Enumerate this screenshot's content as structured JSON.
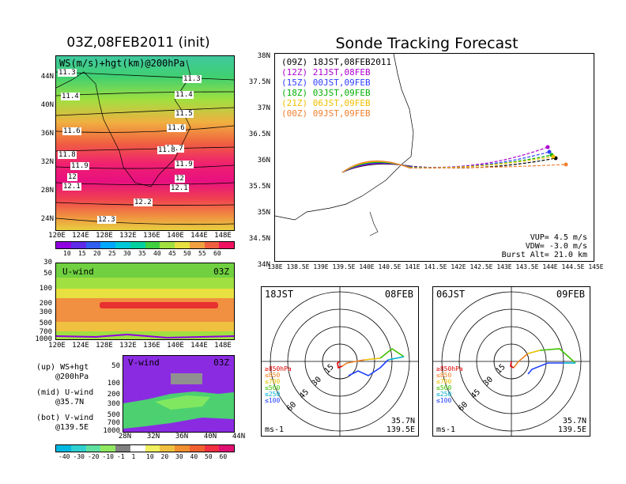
{
  "left_panel": {
    "title": "03Z,08FEB2011 (init)",
    "map_label": "WS(m/s)+hgt(km)@200hPa",
    "lat_ticks": [
      "44N",
      "40N",
      "36N",
      "32N",
      "28N",
      "24N"
    ],
    "lon_ticks": [
      "120E",
      "124E",
      "128E",
      "132E",
      "136E",
      "140E",
      "144E",
      "148E"
    ],
    "contour_labels": [
      "11.3",
      "11.3",
      "11.4",
      "11.4",
      "11.5",
      "11.6",
      "11.6",
      "11.7",
      "11.8",
      "11.8",
      "11.9",
      "11.9",
      "12",
      "12",
      "12.1",
      "12.1",
      "12.2",
      "12.3"
    ],
    "colorbar_ticks": [
      "10",
      "15",
      "20",
      "25",
      "30",
      "35",
      "40",
      "45",
      "50",
      "55",
      "60"
    ],
    "colorbar_colors": [
      "#9000e0",
      "#5e2be8",
      "#3060f0",
      "#00a8ff",
      "#00c8d8",
      "#00d0a0",
      "#40d040",
      "#a0e040",
      "#e8e040",
      "#f0a040",
      "#f06040",
      "#f01060"
    ]
  },
  "uwind": {
    "label": "U-wind",
    "time": "03Z",
    "y_ticks": [
      "30",
      "50",
      "100",
      "200",
      "300",
      "500",
      "700",
      "1000"
    ],
    "x_ticks": [
      "120E",
      "124E",
      "128E",
      "132E",
      "136E",
      "140E",
      "144E",
      "148E"
    ]
  },
  "vwind": {
    "label": "V-wind",
    "time": "03Z",
    "y_ticks": [
      "50",
      "100",
      "200",
      "300",
      "500",
      "700",
      "1000"
    ],
    "x_ticks": [
      "28N",
      "32N",
      "36N",
      "40N",
      "44N"
    ]
  },
  "legend_notes": {
    "up_1": "(up) WS+hgt",
    "up_2": "@200hPa",
    "mid_1": "(mid) U-wind",
    "mid_2": "@35.7N",
    "bot_1": "(bot) V-wind",
    "bot_2": "@139.5E"
  },
  "bottom_colorbar": {
    "ticks": [
      "-40",
      "-30",
      "-20",
      "-10",
      "-1",
      "1",
      "10",
      "20",
      "30",
      "40",
      "50",
      "60"
    ],
    "colors": [
      "#00b8e0",
      "#30d0d0",
      "#60e0a0",
      "#90e860",
      "#808080",
      "#ffffff",
      "#f0f060",
      "#f0c040",
      "#f09030",
      "#f06030",
      "#f03040",
      "#e01070"
    ]
  },
  "tracking": {
    "title": "Sonde Tracking Forecast",
    "legend": [
      {
        "launch": "(09Z)",
        "time": "18JST,08FEB2011",
        "color": "#000000"
      },
      {
        "launch": "(12Z)",
        "time": "21JST,08FEB",
        "color": "#b000d0"
      },
      {
        "launch": "(15Z)",
        "time": "00JST,09FEB",
        "color": "#3040ff"
      },
      {
        "launch": "(18Z)",
        "time": "03JST,09FEB",
        "color": "#00b000"
      },
      {
        "launch": "(21Z)",
        "time": "06JST,09FEB",
        "color": "#f0c000"
      },
      {
        "launch": "(00Z)",
        "time": "09JST,09FEB",
        "color": "#f08030"
      }
    ],
    "lat_ticks": [
      "38N",
      "37.5N",
      "37N",
      "36.5N",
      "36N",
      "35.5N",
      "35N",
      "34.5N",
      "34N"
    ],
    "lon_ticks": [
      "138E",
      "138.5E",
      "139E",
      "139.5E",
      "140E",
      "140.5E",
      "141E",
      "141.5E",
      "142E",
      "142.5E",
      "143E",
      "143.5E",
      "144E",
      "144.5E",
      "145E"
    ],
    "vup": "VUP= 4.5 m/s",
    "vdw": "VDW= -3.0 m/s",
    "burst": "Burst Alt= 21.0 km"
  },
  "hodo_left": {
    "time": "18JST",
    "date": "08FEB",
    "lat": "35.7N",
    "lon": "139.5E",
    "unit": "ms-1"
  },
  "hodo_right": {
    "time": "06JST",
    "date": "09FEB",
    "lat": "35.7N",
    "lon": "139.5E",
    "unit": "ms-1"
  },
  "hodo_rings": [
    "15",
    "30",
    "45",
    "60"
  ],
  "hodo_levels": [
    {
      "label": "≥850hPa",
      "color": "#e00000"
    },
    {
      "label": "≤850",
      "color": "#f08020"
    },
    {
      "label": "≤700",
      "color": "#e8c000"
    },
    {
      "label": "≤500",
      "color": "#40c000"
    },
    {
      "label": "≤250",
      "color": "#00b0d0"
    },
    {
      "label": "≤100",
      "color": "#2040ff"
    }
  ]
}
